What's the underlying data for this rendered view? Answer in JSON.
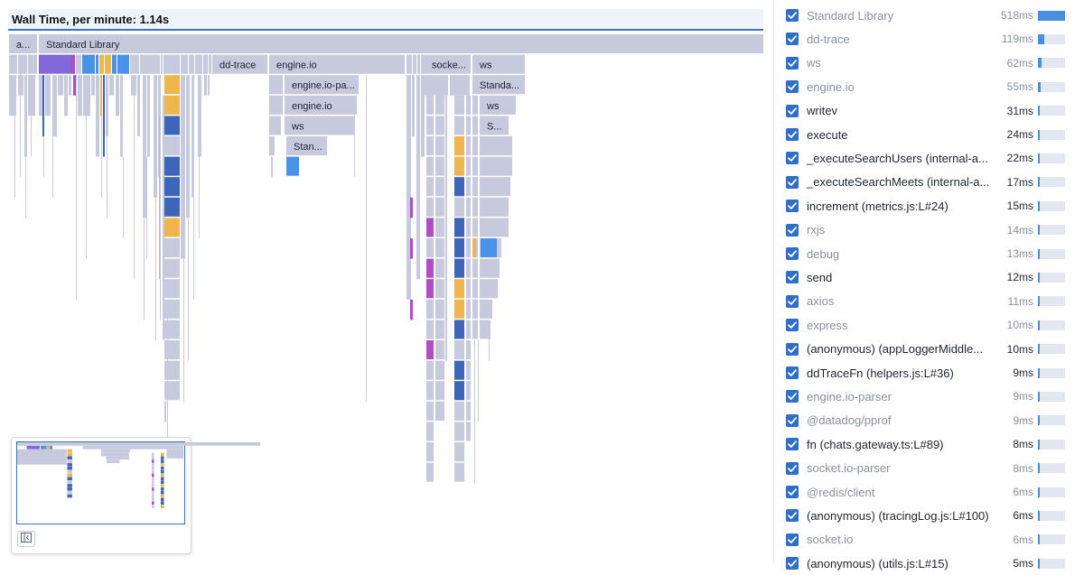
{
  "flame": {
    "title": "Wall Time, per minute: 1.14s",
    "labels": {
      "root_a": "a...",
      "standard_library": "Standard Library",
      "dd_trace": "dd-trace",
      "engine_io": "engine.io",
      "engine_io_parser": "engine.io-pa...",
      "engine_io_2": "engine.io",
      "ws_1": "ws",
      "stan": "Stan...",
      "socket": "socke...",
      "ws_2": "ws",
      "standa": "Standa...",
      "ws_3": "ws",
      "s": "S..."
    },
    "colors": {
      "frame": "#c7cadd",
      "purple": "#8269d8",
      "blue": "#4a91e8",
      "darkblue": "#3e66b8",
      "orange": "#f0b64e",
      "magenta": "#b14dc2",
      "header_accent": "#3a73c2"
    }
  },
  "minimap": {
    "toggle_icon": "collapse-panel-icon"
  },
  "legend": {
    "items": [
      {
        "name": "Standard Library",
        "value": "518ms",
        "kind": "lib",
        "fraction": 1.0
      },
      {
        "name": "dd-trace",
        "value": "119ms",
        "kind": "lib",
        "fraction": 0.23
      },
      {
        "name": "ws",
        "value": "62ms",
        "kind": "lib",
        "fraction": 0.12
      },
      {
        "name": "engine.io",
        "value": "55ms",
        "kind": "lib",
        "fraction": 0.106
      },
      {
        "name": "writev",
        "value": "31ms",
        "kind": "fn",
        "fraction": 0.06
      },
      {
        "name": "execute",
        "value": "24ms",
        "kind": "fn",
        "fraction": 0.046
      },
      {
        "name": "_executeSearchUsers (internal-a...",
        "value": "22ms",
        "kind": "fn",
        "fraction": 0.042
      },
      {
        "name": "_executeSearchMeets (internal-a...",
        "value": "17ms",
        "kind": "fn",
        "fraction": 0.033
      },
      {
        "name": "increment (metrics.js:L#24)",
        "value": "15ms",
        "kind": "fn",
        "fraction": 0.029
      },
      {
        "name": "rxjs",
        "value": "14ms",
        "kind": "lib",
        "fraction": 0.027
      },
      {
        "name": "debug",
        "value": "13ms",
        "kind": "lib",
        "fraction": 0.025
      },
      {
        "name": "send",
        "value": "12ms",
        "kind": "fn",
        "fraction": 0.023
      },
      {
        "name": "axios",
        "value": "11ms",
        "kind": "lib",
        "fraction": 0.021
      },
      {
        "name": "express",
        "value": "10ms",
        "kind": "lib",
        "fraction": 0.019
      },
      {
        "name": "(anonymous) (appLoggerMiddle...",
        "value": "10ms",
        "kind": "fn",
        "fraction": 0.019
      },
      {
        "name": "ddTraceFn (helpers.js:L#36)",
        "value": "9ms",
        "kind": "fn",
        "fraction": 0.017
      },
      {
        "name": "engine.io-parser",
        "value": "9ms",
        "kind": "lib",
        "fraction": 0.017
      },
      {
        "name": "@datadog/pprof",
        "value": "9ms",
        "kind": "lib",
        "fraction": 0.017
      },
      {
        "name": "fn (chats.gateway.ts:L#89)",
        "value": "8ms",
        "kind": "fn",
        "fraction": 0.015
      },
      {
        "name": "socket.io-parser",
        "value": "8ms",
        "kind": "lib",
        "fraction": 0.015
      },
      {
        "name": "@redis/client",
        "value": "6ms",
        "kind": "lib",
        "fraction": 0.012
      },
      {
        "name": "(anonymous) (tracingLog.js:L#100)",
        "value": "6ms",
        "kind": "fn",
        "fraction": 0.012
      },
      {
        "name": "socket.io",
        "value": "6ms",
        "kind": "lib",
        "fraction": 0.012
      },
      {
        "name": "(anonymous) (utils.js:L#15)",
        "value": "5ms",
        "kind": "fn",
        "fraction": 0.01
      }
    ]
  }
}
